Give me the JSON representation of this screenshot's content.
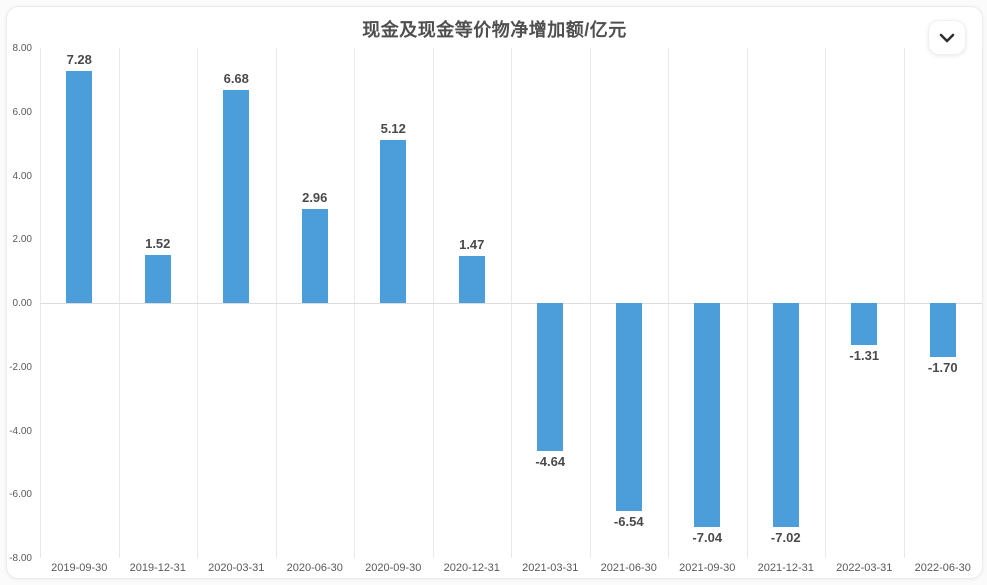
{
  "card": {
    "title": "现金及现金等价物净增加额/亿元",
    "collapse_button": {
      "icon": "chevron-down-icon"
    }
  },
  "chart_data": {
    "type": "bar",
    "title": "现金及现金等价物净增加额/亿元",
    "unit": "亿元",
    "categories": [
      "2019-09-30",
      "2019-12-31",
      "2020-03-31",
      "2020-06-30",
      "2020-09-30",
      "2020-12-31",
      "2021-03-31",
      "2021-06-30",
      "2021-09-30",
      "2021-12-31",
      "2022-03-31",
      "2022-06-30"
    ],
    "values": [
      7.28,
      1.52,
      6.68,
      2.96,
      5.12,
      1.47,
      -4.64,
      -6.54,
      -7.04,
      -7.02,
      -1.31,
      -1.7
    ],
    "value_labels": [
      "7.28",
      "1.52",
      "6.68",
      "2.96",
      "5.12",
      "1.47",
      "-4.64",
      "-6.54",
      "-7.04",
      "-7.02",
      "-1.31",
      "-1.70"
    ],
    "ylim": [
      -8,
      8
    ],
    "ytick_values": [
      8,
      6,
      4,
      2,
      0,
      -2,
      -4,
      -6,
      -8
    ],
    "ytick_labels": [
      "8.00",
      "6.00",
      "4.00",
      "2.00",
      "0.00",
      "-2.00",
      "-4.00",
      "-6.00",
      "-8.00"
    ],
    "grid": "vertical category separators and zero baseline only, no horizontal gridlines",
    "legend": "none",
    "bar_color": "#4b9ed9",
    "value_label_color": "#4a4a4a",
    "axis_text_color": "#595959",
    "title_color": "#4f4f4f"
  }
}
